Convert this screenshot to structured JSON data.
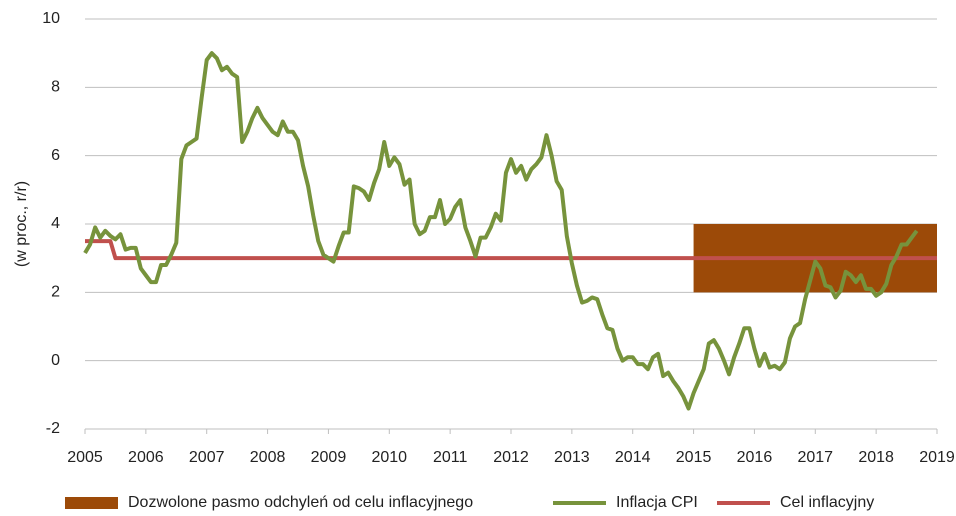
{
  "chart_data": {
    "type": "line",
    "y_label": "(w proc., r/r)",
    "xlim": [
      2005,
      2019
    ],
    "xticks": [
      2005,
      2006,
      2007,
      2008,
      2009,
      2010,
      2011,
      2012,
      2013,
      2014,
      2015,
      2016,
      2017,
      2018,
      2019
    ],
    "ylim": [
      -2,
      10
    ],
    "yticks": [
      -2,
      0,
      2,
      4,
      6,
      8,
      10
    ],
    "grid": true,
    "legend": "bottom",
    "series": [
      {
        "name": "Dozwolone pasmo odchyleń od celu inflacyjnego",
        "kind": "band",
        "color": "#9c4a08",
        "x": [
          2015,
          2019
        ],
        "lower": [
          2,
          2
        ],
        "upper": [
          4,
          4
        ]
      },
      {
        "name": "Inflacja CPI",
        "kind": "line",
        "color": "#77933c",
        "x": [
          2005,
          2005.083,
          2005.167,
          2005.25,
          2005.333,
          2005.417,
          2005.5,
          2005.583,
          2005.667,
          2005.75,
          2005.833,
          2005.917,
          2006,
          2006.083,
          2006.167,
          2006.25,
          2006.333,
          2006.417,
          2006.5,
          2006.583,
          2006.667,
          2006.75,
          2006.833,
          2006.917,
          2007,
          2007.083,
          2007.167,
          2007.25,
          2007.333,
          2007.417,
          2007.5,
          2007.583,
          2007.667,
          2007.75,
          2007.833,
          2007.917,
          2008,
          2008.083,
          2008.167,
          2008.25,
          2008.333,
          2008.417,
          2008.5,
          2008.583,
          2008.667,
          2008.75,
          2008.833,
          2008.917,
          2009,
          2009.083,
          2009.167,
          2009.25,
          2009.333,
          2009.417,
          2009.5,
          2009.583,
          2009.667,
          2009.75,
          2009.833,
          2009.917,
          2010,
          2010.083,
          2010.167,
          2010.25,
          2010.333,
          2010.417,
          2010.5,
          2010.583,
          2010.667,
          2010.75,
          2010.833,
          2010.917,
          2011,
          2011.083,
          2011.167,
          2011.25,
          2011.333,
          2011.417,
          2011.5,
          2011.583,
          2011.667,
          2011.75,
          2011.833,
          2011.917,
          2012,
          2012.083,
          2012.167,
          2012.25,
          2012.333,
          2012.417,
          2012.5,
          2012.583,
          2012.667,
          2012.75,
          2012.833,
          2012.917,
          2013,
          2013.083,
          2013.167,
          2013.25,
          2013.333,
          2013.417,
          2013.5,
          2013.583,
          2013.667,
          2013.75,
          2013.833,
          2013.917,
          2014,
          2014.083,
          2014.167,
          2014.25,
          2014.333,
          2014.417,
          2014.5,
          2014.583,
          2014.667,
          2014.75,
          2014.833,
          2014.917,
          2015,
          2015.083,
          2015.167,
          2015.25,
          2015.333,
          2015.417,
          2015.5,
          2015.583,
          2015.667,
          2015.75,
          2015.833,
          2015.917,
          2016,
          2016.083,
          2016.167,
          2016.25,
          2016.333,
          2016.417,
          2016.5,
          2016.583,
          2016.667,
          2016.75,
          2016.833,
          2016.917,
          2017,
          2017.083,
          2017.167,
          2017.25,
          2017.333,
          2017.417,
          2017.5,
          2017.583,
          2017.667,
          2017.75,
          2017.833,
          2017.917,
          2018,
          2018.083,
          2018.167,
          2018.25,
          2018.333,
          2018.417,
          2018.5,
          2018.583,
          2018.667
        ],
        "values": [
          3.15,
          3.4,
          3.9,
          3.6,
          3.8,
          3.65,
          3.55,
          3.7,
          3.25,
          3.3,
          3.3,
          2.7,
          2.5,
          2.3,
          2.3,
          2.8,
          2.8,
          3.1,
          3.45,
          5.9,
          6.3,
          6.4,
          6.5,
          7.7,
          8.8,
          9.0,
          8.85,
          8.5,
          8.6,
          8.4,
          8.3,
          6.4,
          6.7,
          7.1,
          7.4,
          7.1,
          6.9,
          6.7,
          6.6,
          7.0,
          6.7,
          6.7,
          6.45,
          5.7,
          5.1,
          4.25,
          3.5,
          3.1,
          3.0,
          2.9,
          3.35,
          3.75,
          3.75,
          5.1,
          5.05,
          4.95,
          4.7,
          5.2,
          5.6,
          6.4,
          5.7,
          5.95,
          5.75,
          5.15,
          5.3,
          4.0,
          3.7,
          3.8,
          4.2,
          4.2,
          4.7,
          4.0,
          4.15,
          4.5,
          4.7,
          3.9,
          3.5,
          3.05,
          3.6,
          3.6,
          3.9,
          4.3,
          4.1,
          5.5,
          5.9,
          5.5,
          5.7,
          5.3,
          5.6,
          5.75,
          5.95,
          6.6,
          6.0,
          5.25,
          5.0,
          3.65,
          2.85,
          2.2,
          1.7,
          1.75,
          1.85,
          1.8,
          1.35,
          0.95,
          0.9,
          0.35,
          0.0,
          0.1,
          0.1,
          -0.1,
          -0.1,
          -0.25,
          0.1,
          0.2,
          -0.45,
          -0.35,
          -0.6,
          -0.8,
          -1.05,
          -1.4,
          -0.95,
          -0.6,
          -0.25,
          0.5,
          0.6,
          0.35,
          0.0,
          -0.4,
          0.1,
          0.5,
          0.95,
          0.95,
          0.35,
          -0.15,
          0.2,
          -0.2,
          -0.15,
          -0.25,
          -0.05,
          0.65,
          1.0,
          1.1,
          1.8,
          2.35,
          2.9,
          2.7,
          2.2,
          2.15,
          1.85,
          2.05,
          2.6,
          2.5,
          2.3,
          2.5,
          2.1,
          2.1,
          1.9,
          2.0,
          2.25,
          2.8,
          3.05,
          3.4,
          3.4,
          3.6,
          3.8
        ]
      },
      {
        "name": "Cel inflacyjny",
        "kind": "line",
        "color": "#c0504d",
        "x": [
          2005,
          2005.417,
          2005.5,
          2019
        ],
        "values": [
          3.5,
          3.5,
          3,
          3
        ]
      }
    ]
  }
}
